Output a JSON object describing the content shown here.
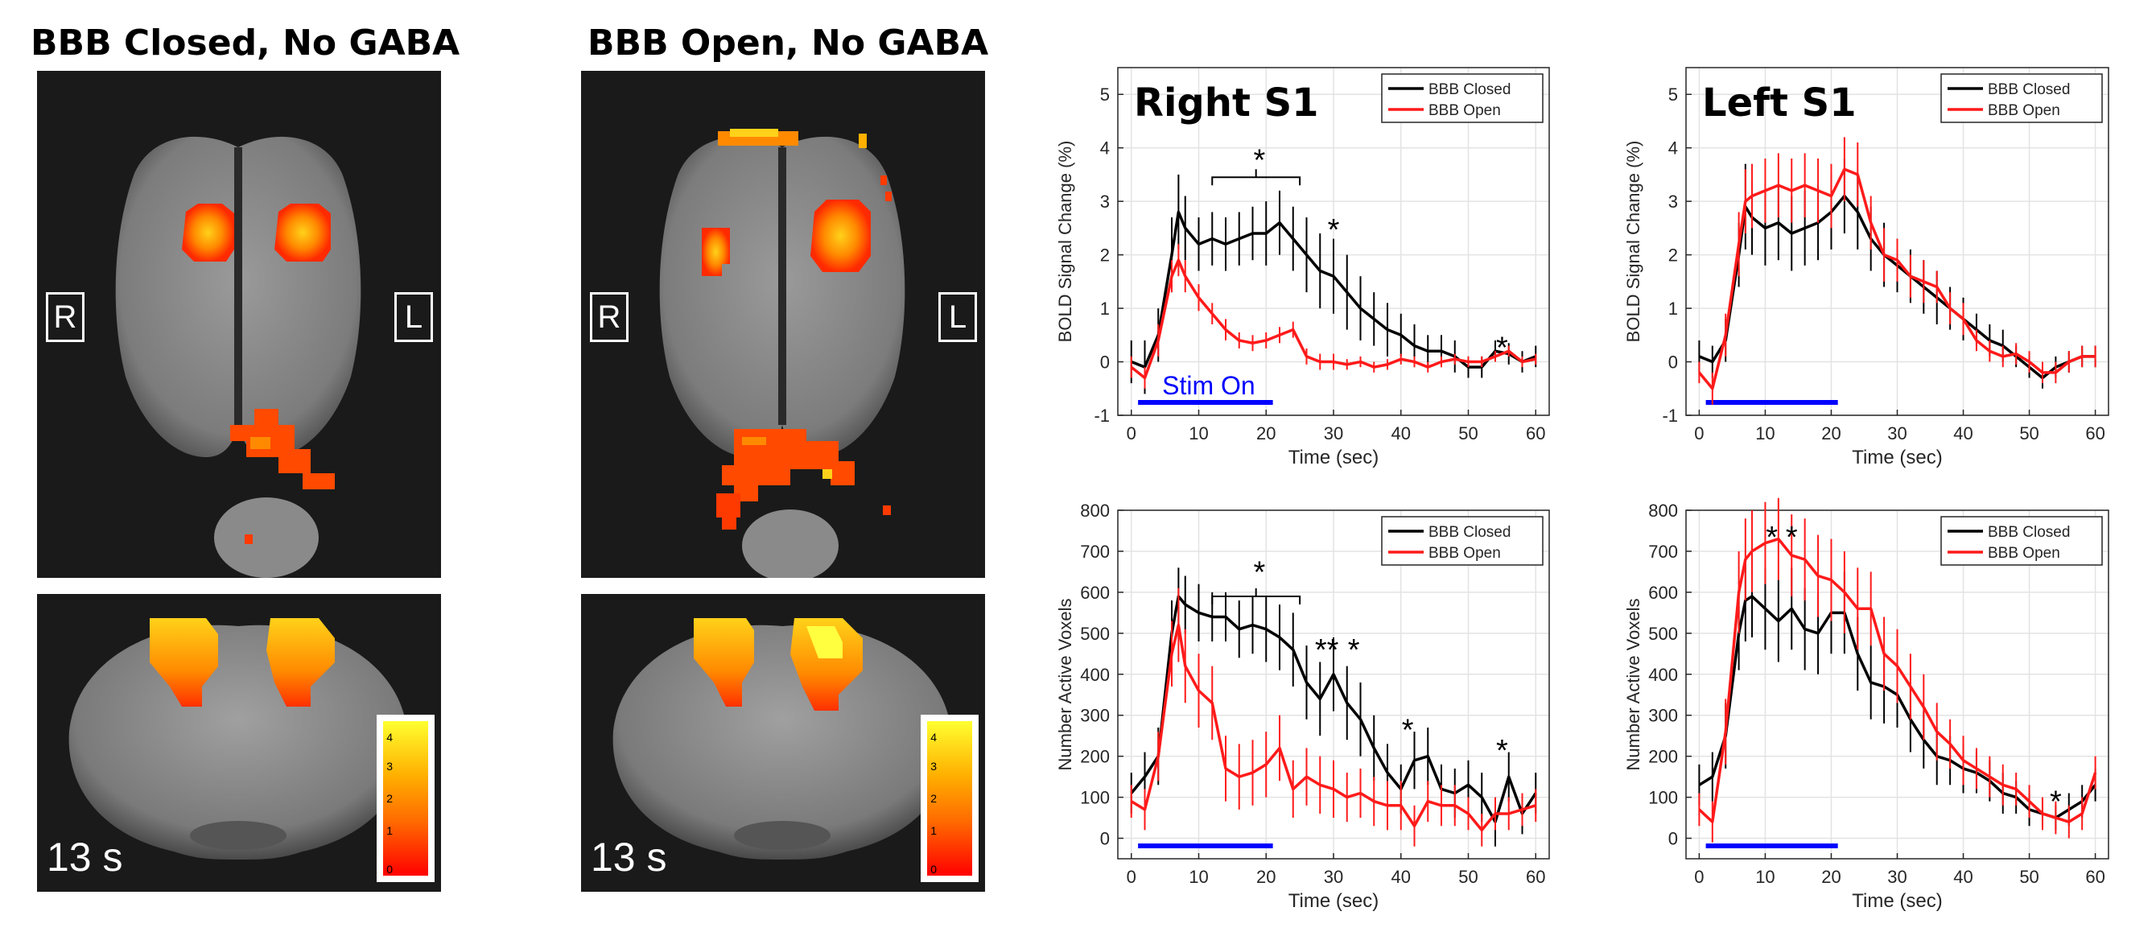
{
  "panels": {
    "closed": {
      "title": "BBB Closed, No GABA",
      "right_label": "R",
      "left_label": "L",
      "time_label": "13 s"
    },
    "open": {
      "title": "BBB Open, No GABA",
      "right_label": "R",
      "left_label": "L",
      "time_label": "13 s"
    }
  },
  "colorbar": {
    "ticks": [
      "0",
      "1",
      "2",
      "3",
      "4"
    ],
    "low_color": "#ff0000",
    "high_color": "#ffff30"
  },
  "colors": {
    "closed": "#000000",
    "open": "#ff1a1a",
    "stim": "#0000ff",
    "background": "#1a1a1a"
  },
  "chart_data": [
    {
      "type": "line",
      "id": "bold_right",
      "title": "Right S1",
      "xlabel": "Time (sec)",
      "ylabel": "BOLD Signal Change (%)",
      "xlim": [
        -2,
        62
      ],
      "ylim": [
        -1,
        5.5
      ],
      "xticks": [
        0,
        10,
        20,
        30,
        40,
        50,
        60
      ],
      "yticks": [
        -1,
        0,
        1,
        2,
        3,
        4,
        5
      ],
      "grid": true,
      "legend_position": "top-right",
      "annotation_text": "Stim On",
      "stim_interval": [
        1,
        21
      ],
      "x": [
        0,
        2,
        4,
        6,
        7,
        8,
        10,
        12,
        14,
        16,
        18,
        20,
        22,
        24,
        26,
        28,
        30,
        32,
        34,
        36,
        38,
        40,
        42,
        44,
        46,
        48,
        50,
        52,
        54,
        56,
        58,
        60
      ],
      "series": [
        {
          "name": "BBB Closed",
          "values": [
            0,
            -0.1,
            0.5,
            2.0,
            2.8,
            2.5,
            2.2,
            2.3,
            2.2,
            2.3,
            2.4,
            2.4,
            2.6,
            2.3,
            2.0,
            1.7,
            1.6,
            1.3,
            1.0,
            0.8,
            0.6,
            0.5,
            0.3,
            0.2,
            0.2,
            0.1,
            -0.1,
            -0.1,
            0.2,
            0.15,
            0.0,
            0.1
          ],
          "errors": [
            0.4,
            0.5,
            0.5,
            0.7,
            0.7,
            0.6,
            0.5,
            0.5,
            0.5,
            0.5,
            0.5,
            0.6,
            0.6,
            0.6,
            0.7,
            0.7,
            0.7,
            0.7,
            0.6,
            0.5,
            0.5,
            0.4,
            0.4,
            0.3,
            0.3,
            0.3,
            0.2,
            0.2,
            0.2,
            0.2,
            0.2,
            0.2
          ]
        },
        {
          "name": "BBB Open",
          "values": [
            -0.1,
            -0.3,
            0.4,
            1.6,
            1.9,
            1.6,
            1.2,
            0.9,
            0.6,
            0.4,
            0.35,
            0.4,
            0.5,
            0.6,
            0.1,
            0.0,
            0.0,
            -0.05,
            0.0,
            -0.1,
            -0.05,
            0.05,
            0.0,
            -0.1,
            0.0,
            0.05,
            0.0,
            0.0,
            0.1,
            0.2,
            0.0,
            0.05
          ],
          "errors": [
            0.2,
            0.2,
            0.3,
            0.3,
            0.3,
            0.3,
            0.25,
            0.2,
            0.2,
            0.15,
            0.15,
            0.15,
            0.15,
            0.15,
            0.15,
            0.15,
            0.15,
            0.1,
            0.1,
            0.1,
            0.1,
            0.1,
            0.1,
            0.1,
            0.1,
            0.1,
            0.1,
            0.1,
            0.1,
            0.1,
            0.1,
            0.1
          ]
        }
      ],
      "stars": [
        {
          "text": "*",
          "x": 19,
          "y": 3.85
        },
        {
          "text": "*",
          "x": 30,
          "y": 2.55
        },
        {
          "text": "*",
          "x": 55,
          "y": 0.35
        }
      ],
      "bracket": {
        "x1": 12,
        "x2": 25,
        "y": 3.45
      }
    },
    {
      "type": "line",
      "id": "bold_left",
      "title": "Left S1",
      "xlabel": "Time (sec)",
      "ylabel": "BOLD Signal Change (%)",
      "xlim": [
        -2,
        62
      ],
      "ylim": [
        -1,
        5.5
      ],
      "xticks": [
        0,
        10,
        20,
        30,
        40,
        50,
        60
      ],
      "yticks": [
        -1,
        0,
        1,
        2,
        3,
        4,
        5
      ],
      "grid": true,
      "legend_position": "top-right",
      "stim_interval": [
        1,
        21
      ],
      "x": [
        0,
        2,
        4,
        6,
        7,
        8,
        10,
        12,
        14,
        16,
        18,
        20,
        22,
        24,
        26,
        28,
        30,
        32,
        34,
        36,
        38,
        40,
        42,
        44,
        46,
        48,
        50,
        52,
        54,
        56,
        58,
        60
      ],
      "series": [
        {
          "name": "BBB Closed",
          "values": [
            0.1,
            0.0,
            0.4,
            2.0,
            2.9,
            2.7,
            2.5,
            2.6,
            2.4,
            2.5,
            2.6,
            2.8,
            3.1,
            2.8,
            2.3,
            2.0,
            1.8,
            1.6,
            1.4,
            1.2,
            1.0,
            0.8,
            0.6,
            0.4,
            0.3,
            0.1,
            -0.1,
            -0.3,
            -0.1,
            0.0,
            0.1,
            0.1
          ],
          "errors": [
            0.3,
            0.3,
            0.4,
            0.6,
            0.8,
            0.7,
            0.7,
            0.7,
            0.7,
            0.7,
            0.7,
            0.7,
            0.7,
            0.7,
            0.6,
            0.6,
            0.5,
            0.5,
            0.5,
            0.5,
            0.4,
            0.4,
            0.3,
            0.3,
            0.3,
            0.2,
            0.2,
            0.2,
            0.2,
            0.2,
            0.2,
            0.2
          ]
        },
        {
          "name": "BBB Open",
          "values": [
            -0.2,
            -0.5,
            0.5,
            2.2,
            3.0,
            3.1,
            3.2,
            3.3,
            3.2,
            3.3,
            3.2,
            3.1,
            3.6,
            3.5,
            2.6,
            2.0,
            1.9,
            1.6,
            1.5,
            1.4,
            1.0,
            0.8,
            0.4,
            0.2,
            0.1,
            0.15,
            0.0,
            -0.2,
            -0.2,
            0.0,
            0.1,
            0.1
          ],
          "errors": [
            0.2,
            0.3,
            0.4,
            0.6,
            0.6,
            0.6,
            0.6,
            0.6,
            0.6,
            0.6,
            0.6,
            0.6,
            0.6,
            0.6,
            0.5,
            0.5,
            0.4,
            0.4,
            0.4,
            0.3,
            0.3,
            0.3,
            0.2,
            0.2,
            0.2,
            0.2,
            0.2,
            0.2,
            0.2,
            0.2,
            0.2,
            0.2
          ]
        }
      ],
      "stars": [],
      "bracket": null
    },
    {
      "type": "line",
      "id": "voxels_right",
      "title": "",
      "xlabel": "Time (sec)",
      "ylabel": "Number Active Voxels",
      "xlim": [
        -2,
        62
      ],
      "ylim": [
        -50,
        800
      ],
      "xticks": [
        0,
        10,
        20,
        30,
        40,
        50,
        60
      ],
      "yticks": [
        0,
        100,
        200,
        300,
        400,
        500,
        600,
        700,
        800
      ],
      "grid": true,
      "legend_position": "top-right",
      "stim_interval": [
        1,
        21
      ],
      "x": [
        0,
        2,
        4,
        6,
        7,
        8,
        10,
        12,
        14,
        16,
        18,
        20,
        22,
        24,
        26,
        28,
        30,
        32,
        34,
        36,
        38,
        40,
        42,
        44,
        46,
        48,
        50,
        52,
        54,
        56,
        58,
        60
      ],
      "series": [
        {
          "name": "BBB Closed",
          "values": [
            110,
            150,
            200,
            500,
            590,
            570,
            550,
            540,
            540,
            510,
            520,
            510,
            490,
            460,
            380,
            340,
            400,
            330,
            290,
            220,
            160,
            120,
            190,
            200,
            120,
            110,
            130,
            100,
            40,
            150,
            60,
            110
          ],
          "errors": [
            50,
            60,
            70,
            80,
            70,
            70,
            70,
            60,
            60,
            70,
            70,
            80,
            80,
            90,
            90,
            90,
            90,
            90,
            90,
            80,
            70,
            60,
            70,
            70,
            60,
            60,
            60,
            60,
            60,
            60,
            50,
            50
          ]
        },
        {
          "name": "BBB Open",
          "values": [
            90,
            70,
            200,
            450,
            520,
            420,
            360,
            330,
            170,
            150,
            160,
            180,
            220,
            120,
            150,
            130,
            120,
            100,
            110,
            90,
            80,
            80,
            30,
            90,
            80,
            80,
            60,
            20,
            60,
            60,
            70,
            80
          ],
          "errors": [
            40,
            50,
            60,
            80,
            90,
            90,
            90,
            90,
            80,
            80,
            80,
            80,
            80,
            70,
            70,
            70,
            70,
            60,
            60,
            60,
            60,
            60,
            50,
            50,
            50,
            50,
            40,
            40,
            40,
            40,
            40,
            40
          ]
        }
      ],
      "stars": [
        {
          "text": "*",
          "x": 19,
          "y": 660
        },
        {
          "text": "**",
          "x": 29,
          "y": 470
        },
        {
          "text": "*",
          "x": 33,
          "y": 470
        },
        {
          "text": "*",
          "x": 41,
          "y": 275
        },
        {
          "text": "*",
          "x": 55,
          "y": 225
        }
      ],
      "bracket": {
        "x1": 12,
        "x2": 25,
        "y": 590
      }
    },
    {
      "type": "line",
      "id": "voxels_left",
      "title": "",
      "xlabel": "Time (sec)",
      "ylabel": "Number Active Voxels",
      "xlim": [
        -2,
        62
      ],
      "ylim": [
        -50,
        800
      ],
      "xticks": [
        0,
        10,
        20,
        30,
        40,
        50,
        60
      ],
      "yticks": [
        0,
        100,
        200,
        300,
        400,
        500,
        600,
        700,
        800
      ],
      "grid": true,
      "legend_position": "top-right",
      "stim_interval": [
        1,
        21
      ],
      "x": [
        0,
        2,
        4,
        6,
        7,
        8,
        10,
        12,
        14,
        16,
        18,
        20,
        22,
        24,
        26,
        28,
        30,
        32,
        34,
        36,
        38,
        40,
        42,
        44,
        46,
        48,
        50,
        52,
        54,
        56,
        58,
        60
      ],
      "series": [
        {
          "name": "BBB Closed",
          "values": [
            130,
            150,
            250,
            500,
            580,
            590,
            560,
            530,
            560,
            510,
            500,
            550,
            550,
            450,
            380,
            370,
            350,
            290,
            240,
            200,
            190,
            170,
            160,
            140,
            110,
            100,
            70,
            60,
            50,
            70,
            90,
            130
          ],
          "errors": [
            50,
            60,
            80,
            90,
            100,
            100,
            100,
            100,
            100,
            100,
            100,
            100,
            100,
            90,
            90,
            90,
            80,
            80,
            70,
            70,
            60,
            60,
            50,
            50,
            50,
            40,
            40,
            30,
            30,
            40,
            40,
            40
          ]
        },
        {
          "name": "BBB Open",
          "values": [
            70,
            40,
            260,
            600,
            680,
            700,
            720,
            730,
            690,
            680,
            640,
            630,
            600,
            560,
            560,
            450,
            420,
            370,
            320,
            260,
            230,
            190,
            170,
            150,
            130,
            120,
            90,
            60,
            50,
            40,
            60,
            160
          ],
          "errors": [
            40,
            50,
            80,
            100,
            100,
            100,
            100,
            100,
            100,
            100,
            100,
            100,
            100,
            100,
            90,
            90,
            90,
            80,
            80,
            70,
            60,
            60,
            50,
            50,
            50,
            40,
            40,
            40,
            40,
            40,
            40,
            40
          ]
        }
      ],
      "stars": [
        {
          "text": "*",
          "x": 11,
          "y": 745
        },
        {
          "text": "*",
          "x": 14,
          "y": 745
        },
        {
          "text": "*",
          "x": 54,
          "y": 100
        }
      ],
      "bracket": null
    }
  ]
}
